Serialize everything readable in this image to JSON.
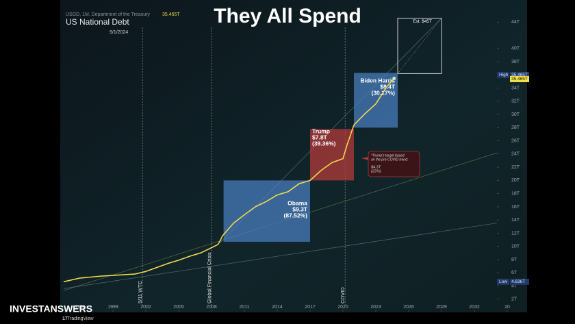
{
  "chart_data": {
    "type": "line",
    "title": "They All Spend",
    "source": "USGD, 1M, Department of the Treasury",
    "last_value": "35.465T",
    "name": "US National Debt",
    "date": "9/1/2024",
    "x": [
      1994.5,
      1996,
      1998,
      2000,
      2001,
      2002,
      2003,
      2004,
      2005,
      2006,
      2007,
      2008,
      2008.6,
      2008.8,
      2009,
      2010,
      2011,
      2012,
      2013,
      2014,
      2015,
      2016,
      2017,
      2018,
      2019,
      2020,
      2020.4,
      2021,
      2022,
      2023,
      2024,
      2024.67
    ],
    "series": [
      {
        "name": "US National Debt",
        "color": "#f2d94e",
        "values": [
          4.64,
          5.2,
          5.5,
          5.7,
          5.8,
          6.2,
          6.8,
          7.4,
          7.9,
          8.5,
          9.0,
          9.8,
          10.3,
          10.9,
          11.6,
          13.5,
          14.8,
          16.0,
          16.8,
          17.8,
          18.3,
          19.5,
          20.0,
          21.5,
          22.7,
          23.3,
          25.5,
          28.4,
          30.1,
          31.6,
          34.2,
          35.465
        ]
      }
    ],
    "xlim": [
      1994.5,
      2035.5
    ],
    "xticks": [
      1996,
      1999,
      2002,
      2005,
      2008,
      2011,
      2014,
      2017,
      2020,
      2023,
      2026,
      2029,
      2032,
      {
        "value": 2035,
        "label": "20"
      }
    ],
    "ylim": [
      0,
      46
    ],
    "yticks": [
      {
        "value": 2,
        "label": "2T"
      },
      {
        "value": 4,
        "label": "4T"
      },
      {
        "value": 6,
        "label": "6T"
      },
      {
        "value": 8,
        "label": "8T"
      },
      {
        "value": 10,
        "label": "10T"
      },
      {
        "value": 12,
        "label": "12T"
      },
      {
        "value": 14,
        "label": "14T"
      },
      {
        "value": 16,
        "label": "16T"
      },
      {
        "value": 18,
        "label": "18T"
      },
      {
        "value": 20,
        "label": "20T"
      },
      {
        "value": 22,
        "label": "22T"
      },
      {
        "value": 24,
        "label": "24T"
      },
      {
        "value": 26,
        "label": "26T"
      },
      {
        "value": 28,
        "label": "28T"
      },
      {
        "value": 30,
        "label": "30T"
      },
      {
        "value": 32,
        "label": "32T"
      },
      {
        "value": 34,
        "label": "34T"
      },
      {
        "value": 38,
        "label": "38T"
      },
      {
        "value": 40,
        "label": "40T"
      },
      {
        "value": 44,
        "label": "44T"
      }
    ],
    "periods": [
      {
        "label": "Obama",
        "amount": "$9.3T",
        "pct": "(87.52%)",
        "start": 2009.1,
        "end": 2017,
        "y": [
          10.7,
          20
        ],
        "color": "#4a7fc0"
      },
      {
        "label": "Trump",
        "amount": "$7.8T",
        "pct": "(39.36%)",
        "start": 2017,
        "end": 2021,
        "y": [
          20,
          27.8
        ],
        "color": "#b83a3a"
      },
      {
        "label": "Biden Harris",
        "amount": "$8.4T",
        "pct": "(30.17%)",
        "start": 2021,
        "end": 2025,
        "y": [
          28,
          36.3
        ],
        "color": "#4a7fc0"
      }
    ],
    "estimate": {
      "label": "Est. $45T",
      "start": 2025,
      "end": 2029,
      "y": [
        36.2,
        44.6
      ]
    },
    "events": [
      {
        "label": "9/11 WTC",
        "x": 2001.7
      },
      {
        "label": "Global Financial Crisis",
        "x": 2008
      },
      {
        "label": "COVID",
        "x": 2020.2
      }
    ],
    "trendlines": [
      {
        "x": [
          1994.5,
          2034.3
        ],
        "y": [
          3.6,
          13.6
        ]
      },
      {
        "x": [
          1994.5,
          2034.3
        ],
        "y": [
          3.3,
          24.3
        ]
      },
      {
        "x": [
          2008.8,
          2029
        ],
        "y": [
          10.6,
          44.6
        ]
      }
    ],
    "note": {
      "text": [
        "*Trump's target based",
        "on the pre-COVID trend:"
      ],
      "amount": "$4.3T",
      "pct": "(22%)"
    },
    "high": {
      "label": "High",
      "value": 35.465,
      "value_label": "35.465T"
    },
    "low": {
      "label": "Low",
      "value": 4.636,
      "value_label": "4.636T"
    },
    "brand": "INVESTANSWERS",
    "platform": "TradingView"
  }
}
